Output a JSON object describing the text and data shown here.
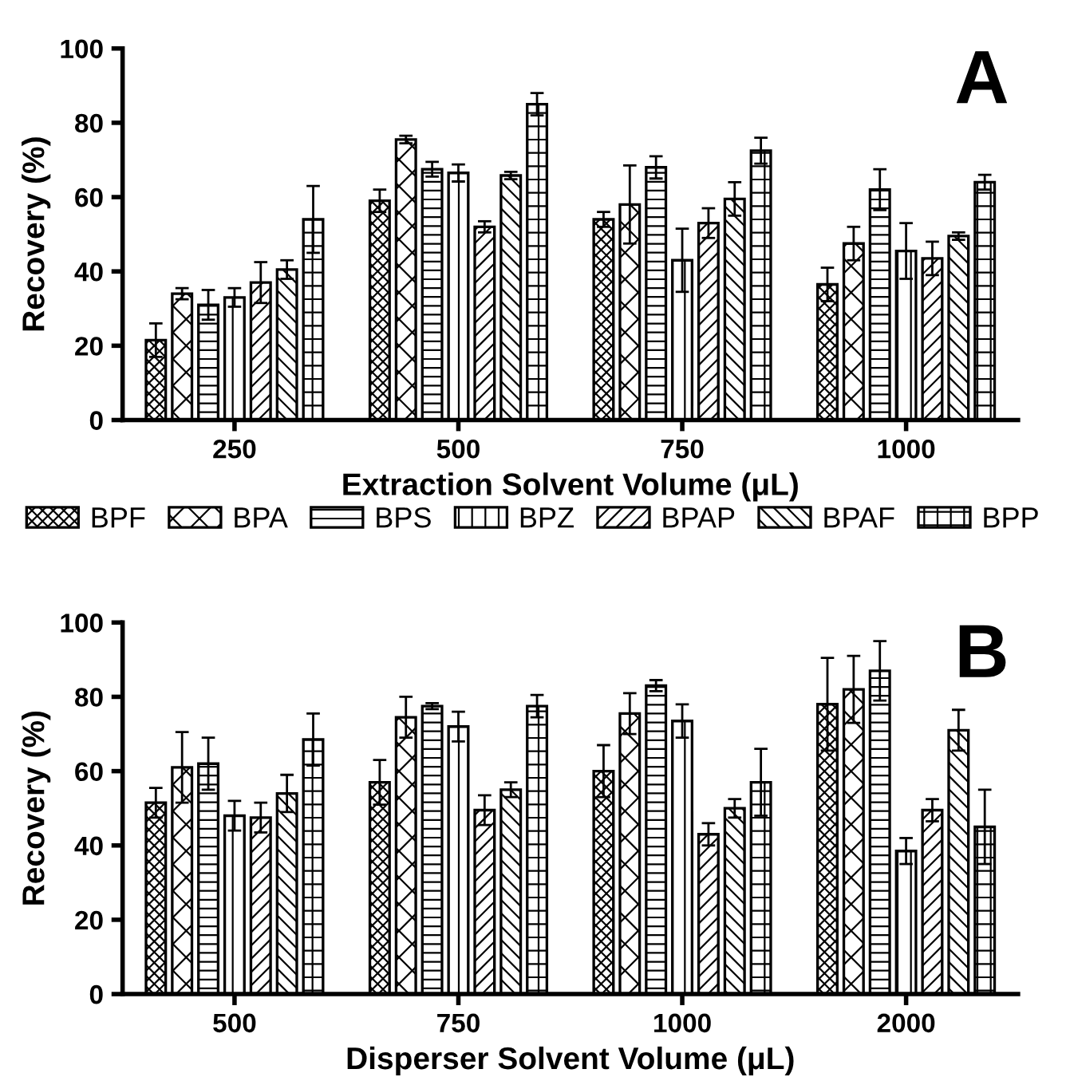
{
  "chart_data": [
    {
      "type": "bar",
      "xlabel": "Extraction Solvent Volume (μL)",
      "ylabel": "Recovery (%)",
      "annotations": [
        "A"
      ],
      "categories": [
        "250",
        "500",
        "750",
        "1000"
      ],
      "ylim": [
        0,
        100
      ],
      "yticks": [
        0,
        20,
        40,
        60,
        80,
        100
      ],
      "grid": false,
      "legend": "bottom",
      "series": [
        {
          "name": "BPF",
          "color": "#000000",
          "values": [
            21.5,
            59,
            54,
            36.5
          ],
          "errors": [
            4.5,
            3,
            2,
            4.5
          ]
        },
        {
          "name": "BPA",
          "color": "#000000",
          "values": [
            34,
            75.5,
            58,
            47.5
          ],
          "errors": [
            1.5,
            1,
            10.5,
            4.5
          ]
        },
        {
          "name": "BPS",
          "color": "#000000",
          "values": [
            31,
            67.5,
            68,
            62
          ],
          "errors": [
            4,
            2,
            3,
            5.5
          ]
        },
        {
          "name": "BPZ",
          "color": "#000000",
          "values": [
            33,
            66.5,
            43,
            45.5
          ],
          "errors": [
            2.5,
            2.3,
            8.5,
            7.5
          ]
        },
        {
          "name": "BPAP",
          "color": "#000000",
          "values": [
            37,
            52,
            53,
            43.5
          ],
          "errors": [
            5.5,
            1.5,
            4,
            4.5
          ]
        },
        {
          "name": "BPAF",
          "color": "#000000",
          "values": [
            40.5,
            65.8,
            59.5,
            49.5
          ],
          "errors": [
            2.5,
            1,
            4.5,
            1
          ]
        },
        {
          "name": "BPP",
          "color": "#000000",
          "values": [
            54,
            85,
            72.5,
            64
          ],
          "errors": [
            9,
            3,
            3.5,
            2
          ]
        }
      ]
    },
    {
      "type": "bar",
      "xlabel": "Disperser Solvent Volume (μL)",
      "ylabel": "Recovery (%)",
      "annotations": [
        "B"
      ],
      "categories": [
        "500",
        "750",
        "1000",
        "2000"
      ],
      "ylim": [
        0,
        100
      ],
      "yticks": [
        0,
        20,
        40,
        60,
        80,
        100
      ],
      "grid": false,
      "series": [
        {
          "color": "#000000",
          "values": [
            51.5,
            57,
            60,
            78
          ],
          "errors": [
            4,
            6,
            7,
            12.5
          ]
        },
        {
          "color": "#000000",
          "values": [
            61,
            74.5,
            75.5,
            82
          ],
          "errors": [
            9.5,
            5.5,
            5.5,
            9
          ]
        },
        {
          "color": "#000000",
          "values": [
            62,
            77.5,
            83,
            87
          ],
          "errors": [
            7,
            0.8,
            1.5,
            8
          ]
        },
        {
          "color": "#000000",
          "values": [
            48,
            72,
            73.5,
            38.5
          ],
          "errors": [
            4,
            4,
            4.5,
            3.5
          ]
        },
        {
          "color": "#000000",
          "values": [
            47.5,
            49.5,
            43,
            49.5
          ],
          "errors": [
            4,
            4,
            3,
            3
          ]
        },
        {
          "color": "#000000",
          "values": [
            54,
            55,
            50,
            71
          ],
          "errors": [
            5,
            2,
            2.5,
            5.5
          ]
        },
        {
          "color": "#000000",
          "values": [
            68.5,
            77.5,
            57,
            45
          ],
          "errors": [
            7,
            3,
            9,
            10
          ]
        }
      ]
    }
  ]
}
